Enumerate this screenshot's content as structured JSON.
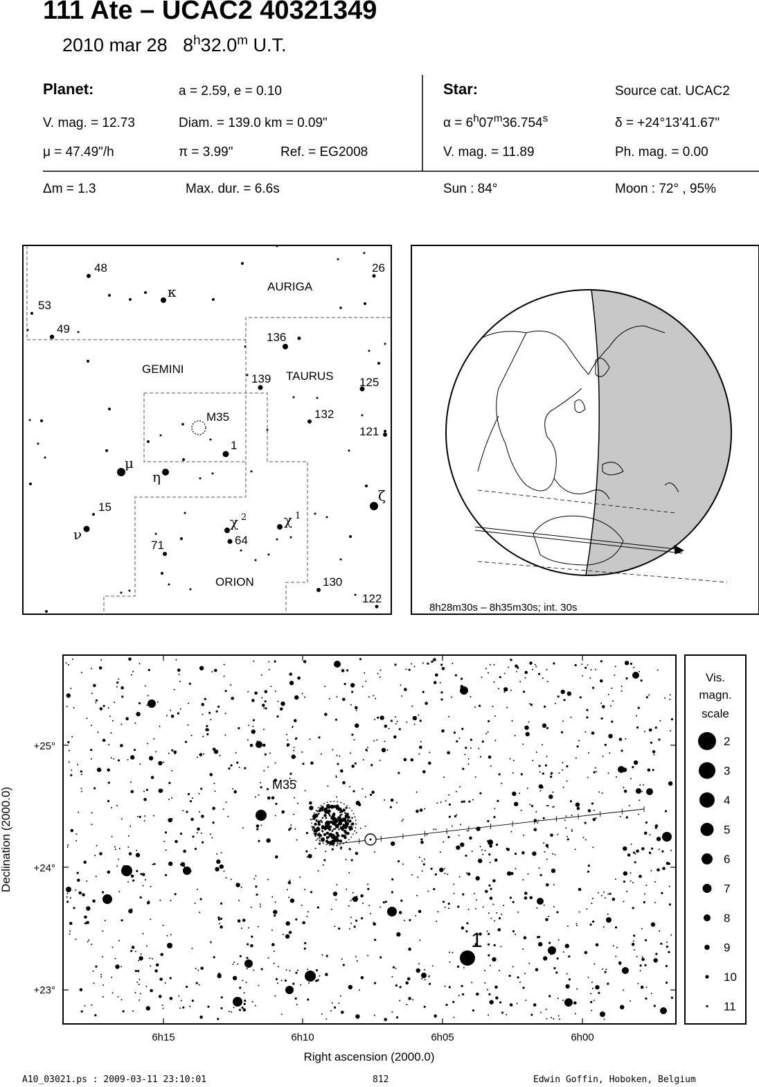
{
  "header": {
    "title": "111 Ate  –  UCAC2 40321349",
    "date": "2010 mar 28",
    "time_h": "8",
    "time_h_unit": "h",
    "time_m": "32.0",
    "time_m_unit": "m",
    "time_suffix": "U.T."
  },
  "planet": {
    "label": "Planet:",
    "orbit": "a = 2.59, e = 0.10",
    "vmag": "V. mag. = 12.73",
    "diam": "Diam. = 139.0 km = 0.09\"",
    "mu": "μ =  47.49\"/h",
    "pi": "π =  3.99\"",
    "ref": "Ref. = EG2008"
  },
  "star": {
    "label": "Star:",
    "source": "Source cat.  UCAC2",
    "alpha_prefix": "α =  6",
    "alpha_h": "h",
    "alpha_mid": "07",
    "alpha_m": "m",
    "alpha_sec": "36.754",
    "alpha_s": "s",
    "delta": "δ = +24°13'41.67\"",
    "vmag": "V. mag. = 11.89",
    "phmag": "Ph. mag. =  0.00"
  },
  "event": {
    "dm": "Δm = 1.3",
    "maxdur": "Max. dur. = 6.6s",
    "sun": "Sun :  84°",
    "moon": "Moon :  72° , 95%"
  },
  "finder": {
    "constellations": [
      "AURIGA",
      "GEMINI",
      "TAURUS",
      "ORION"
    ],
    "labels": [
      "48",
      "53",
      "49",
      "26",
      "136",
      "139",
      "125",
      "132",
      "121",
      "1",
      "15",
      "71",
      "64",
      "130",
      "122",
      "M35"
    ],
    "greek": [
      "κ",
      "μ",
      "η",
      "ζ",
      "ν",
      "χ",
      "2",
      "χ",
      "1"
    ]
  },
  "globe": {
    "caption": "8h28m30s –  8h35m30s; int. 30s"
  },
  "chart_data": {
    "type": "scatter",
    "xlabel": "Right ascension (2000.0)",
    "ylabel": "Declination (2000.0)",
    "x_ticks": [
      "6h15",
      "6h10",
      "6h05",
      "6h00"
    ],
    "x_tick_values_min": [
      375,
      370,
      365,
      360
    ],
    "y_ticks": [
      "+25°",
      "+24°",
      "+23°"
    ],
    "y_tick_values": [
      25,
      24,
      23
    ],
    "annotations": [
      "M35",
      "1"
    ],
    "legend": {
      "title_lines": [
        "Vis.",
        "magn.",
        "scale"
      ],
      "mags": [
        "2",
        "3",
        "4",
        "5",
        "6",
        "7",
        "8",
        "9",
        "10",
        "11"
      ]
    }
  },
  "footer": {
    "file": "A10_03021.ps : 2009-03-11 23:10:01",
    "page": "812",
    "author": "Edwin Goffin, Hoboken, Belgium"
  }
}
